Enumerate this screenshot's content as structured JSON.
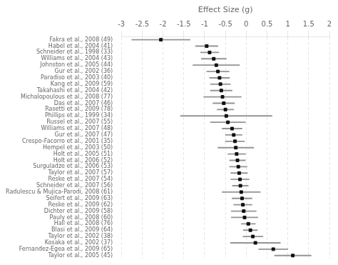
{
  "chart_data": {
    "type": "forest",
    "orientation": "horizontal",
    "x_label": "Effect Size (g)",
    "categories": [
      "Fakra et al., 2008 (49)",
      "Habel et al., 2004 (41)",
      "Schneider et al., 1998 (33)",
      "Williams et al., 2004 (43)",
      "Johnston et al., 2005 (44)",
      "Gur et al., 2002 (36)",
      "Paradiso et al., 2003 (40)",
      "Kang et al., 2009 (59)",
      "Takahashi et al., 2004 (42)",
      "Michalopoulous et al., 2008 (77)",
      "Das et al., 2007 (46)",
      "Rasetti et al., 2009 (78)",
      "Phillips et al., 1999 (34)",
      "Russel et al., 2007 (55)",
      "Williams et al., 2007 (48)",
      "Gur et al., 2007 (47)",
      "Crespo-Facorro et al., 2001 (35)",
      "Hempel et al., 2003 (50)",
      "Holt et al., 2005 (51)",
      "Holt et al., 2006 (52)",
      "Surguladze et al., 2006 (53)",
      "Taylor et al., 2007 (57)",
      "Reske et al., 2007 (54)",
      "Schneider et al., 2007 (56)",
      "Radulescu & Mujica-Parodi, 2008 (61)",
      "Seifert et al., 2009 (63)",
      "Reske et al., 2009 (62)",
      "Dichter et al., 2009 (58)",
      "Pauly et al., 2008 (60)",
      "Hall et al., 2008 (76)",
      "Blasi et al., 2009 (64)",
      "Taylor et al., 2002 (38)",
      "Kosaka et al., 2002 (37)",
      "Fernandez-Egea et al., 2009 (65)",
      "Taylor et al., 2005 (45)"
    ],
    "values": [
      -2.05,
      -0.95,
      -0.88,
      -0.78,
      -0.72,
      -0.68,
      -0.64,
      -0.62,
      -0.6,
      -0.57,
      -0.54,
      -0.5,
      -0.48,
      -0.44,
      -0.34,
      -0.3,
      -0.27,
      -0.25,
      -0.23,
      -0.21,
      -0.19,
      -0.17,
      -0.15,
      -0.14,
      -0.12,
      -0.1,
      -0.08,
      -0.06,
      -0.04,
      0.05,
      0.1,
      0.16,
      0.22,
      0.65,
      1.12
    ],
    "ci_lo": [
      -2.75,
      -1.22,
      -1.1,
      -1.08,
      -1.28,
      -0.95,
      -0.88,
      -0.86,
      -0.86,
      -1.02,
      -0.8,
      -0.7,
      -1.58,
      -0.86,
      -0.58,
      -0.5,
      -0.5,
      -0.68,
      -0.44,
      -0.4,
      -0.4,
      -0.37,
      -0.37,
      -0.33,
      -0.58,
      -0.34,
      -0.3,
      -0.36,
      -0.36,
      -0.12,
      -0.07,
      -0.08,
      -0.38,
      0.3,
      0.68
    ],
    "ci_hi": [
      -1.35,
      -0.68,
      -0.66,
      -0.48,
      -0.16,
      -0.41,
      -0.4,
      -0.38,
      -0.34,
      -0.12,
      -0.28,
      -0.3,
      0.62,
      -0.02,
      -0.1,
      -0.1,
      -0.04,
      0.18,
      -0.02,
      -0.02,
      0.02,
      0.03,
      0.07,
      0.05,
      0.34,
      0.14,
      0.14,
      0.24,
      0.28,
      0.22,
      0.27,
      0.4,
      0.82,
      1.0,
      1.56
    ],
    "color": "#111111",
    "xlim": [
      -3,
      2
    ],
    "xticks": [
      -3,
      -2.5,
      -2,
      -1.5,
      -1,
      -0.5,
      0,
      0.5,
      1,
      1.5,
      2
    ],
    "grid": true
  }
}
